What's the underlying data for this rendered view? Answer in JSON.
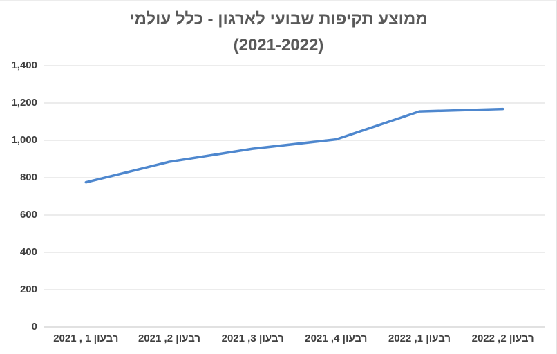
{
  "chart_data": {
    "type": "line",
    "title": "ממוצע תקיפות שבועי לארגון - כלל עולמי",
    "subtitle": "(2021-2022)",
    "categories": [
      "רבעון 1 , 2021",
      "רבעון 2, 2021",
      "רבעון 3, 2021",
      "רבעון 4, 2021",
      "רבעון 1, 2022",
      "רבעון 2, 2022"
    ],
    "series": [
      {
        "name": "ממוצע תקיפות שבועי לארגון",
        "values": [
          775,
          885,
          955,
          1005,
          1155,
          1168
        ]
      }
    ],
    "xlabel": "",
    "ylabel": "",
    "ylim": [
      0,
      1400
    ],
    "ytick_step": 200,
    "y_tick_labels": [
      "0",
      "200",
      "400",
      "600",
      "800",
      "1,000",
      "1,200",
      "1,400"
    ],
    "grid": true,
    "legend": "none",
    "rtl": true,
    "colors": {
      "line": "#4E87CE",
      "title_text": "#595959",
      "tick_text": "#3f3f3f",
      "gridline": "#D9D9D9",
      "axis_line": "#C3C3C3",
      "background": "#ffffff"
    }
  }
}
